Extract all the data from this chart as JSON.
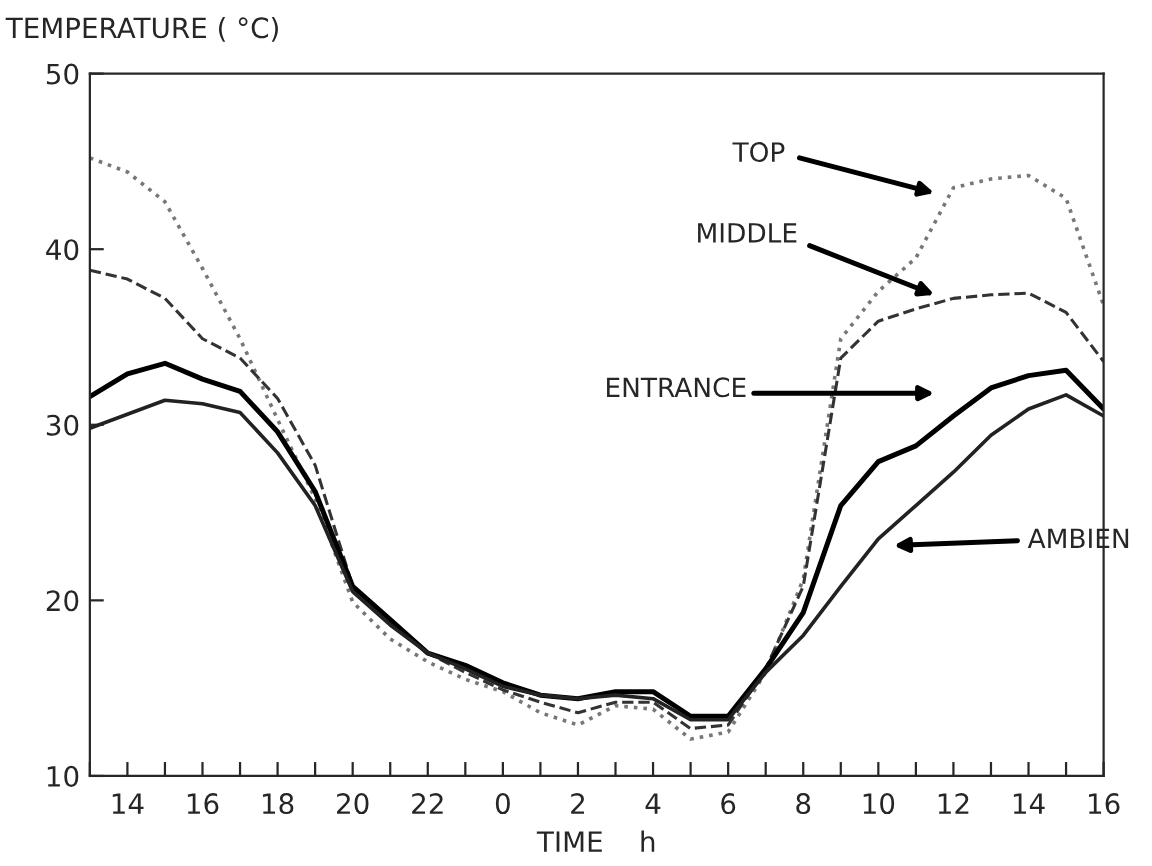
{
  "chart_data": {
    "type": "line",
    "ylabel": "TEMPERATURE ( °C)",
    "xlabel": "TIME    h",
    "categories": [
      null,
      "14",
      null,
      "16",
      null,
      "18",
      null,
      "20",
      null,
      "22",
      null,
      "0",
      null,
      "2",
      null,
      "4",
      null,
      "6",
      null,
      "8",
      null,
      "10",
      null,
      "12",
      null,
      "14",
      null,
      "16"
    ],
    "series": [
      {
        "color": "#777777",
        "line_style": "dotted",
        "values": [
          45.2,
          44.4,
          42.7,
          38.9,
          34.9,
          30.3,
          25.8,
          19.9,
          17.8,
          16.5,
          15.5,
          14.8,
          13.6,
          12.9,
          14.0,
          13.8,
          12.1,
          12.5,
          15.9,
          21.2,
          34.9,
          37.6,
          39.5,
          43.5,
          44.0,
          44.2,
          42.9,
          36.8
        ]
      },
      {
        "color": "#333333",
        "line_style": "dashed",
        "values": [
          38.8,
          38.3,
          37.2,
          34.9,
          33.8,
          31.5,
          27.7,
          20.8,
          18.9,
          17.0,
          15.9,
          14.9,
          14.2,
          13.6,
          14.2,
          14.2,
          12.7,
          12.9,
          16.1,
          20.8,
          33.8,
          35.9,
          36.6,
          37.2,
          37.4,
          37.5,
          36.4,
          33.6
        ]
      },
      {
        "color": "#000000",
        "line_style": "solid",
        "values": [
          31.6,
          32.9,
          33.5,
          32.6,
          31.9,
          29.6,
          26.2,
          20.8,
          18.9,
          17.0,
          16.3,
          15.3,
          14.6,
          14.4,
          14.8,
          14.8,
          13.4,
          13.4,
          16.1,
          19.3,
          25.4,
          27.9,
          28.8,
          30.5,
          32.1,
          32.8,
          33.1,
          30.9
        ]
      },
      {
        "color": "#222222",
        "line_style": "solid",
        "values": [
          29.8,
          30.6,
          31.4,
          31.2,
          30.7,
          28.4,
          25.4,
          20.5,
          18.6,
          17.0,
          16.1,
          15.1,
          14.6,
          14.4,
          14.6,
          14.4,
          13.2,
          13.2,
          15.9,
          18.0,
          20.8,
          23.5,
          25.4,
          27.3,
          29.4,
          30.9,
          31.7,
          30.5
        ]
      }
    ],
    "annotations": [
      "TOP",
      "MIDDLE",
      "ENTRANCE",
      "AMBIEN"
    ],
    "ylim": [
      10,
      50
    ],
    "yticks": [
      10,
      20,
      30,
      40,
      50
    ],
    "grid": false,
    "legend": false
  }
}
